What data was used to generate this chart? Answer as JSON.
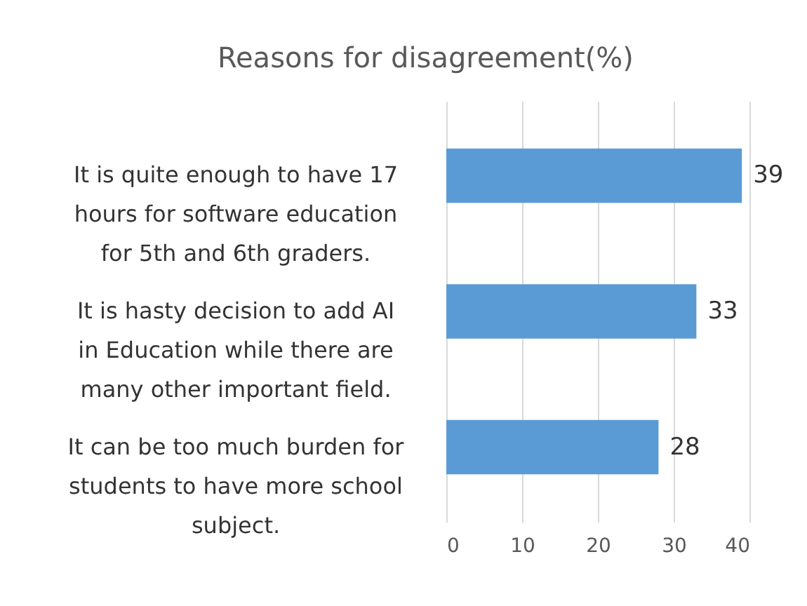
{
  "chart_data": {
    "type": "bar",
    "orientation": "horizontal",
    "title": "Reasons for disagreement(%)",
    "categories": [
      "It is quite enough to have 17 hours for software education for 5th and 6th graders.",
      "It is hasty decision to add AI in Education while there are many other important field.",
      "It can be too much burden for students to have more school subject."
    ],
    "values": [
      39,
      33,
      28
    ],
    "color": "#5b9bd5",
    "xlim": [
      0,
      40
    ],
    "xticks": [
      0,
      10,
      20,
      30,
      40
    ],
    "grid": "x",
    "data_labels": true
  }
}
